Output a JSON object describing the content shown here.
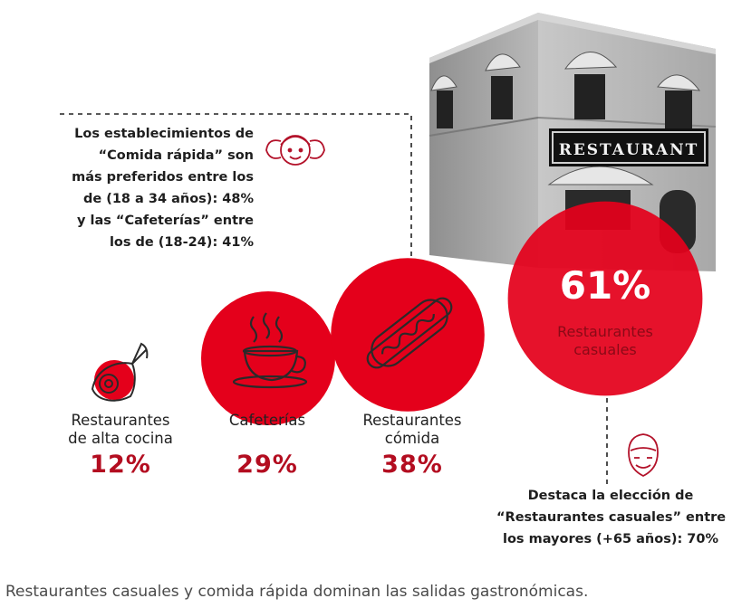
{
  "chart_data": {
    "type": "bubble",
    "title": "",
    "categories": [
      "Restaurantes de alta cocina",
      "Cafeterías",
      "Restaurantes comida",
      "Restaurantes casuales"
    ],
    "values": [
      12,
      29,
      38,
      61
    ],
    "unit": "%",
    "series": [
      {
        "name": "Restaurantes de alta cocina",
        "label_lines": [
          "Restaurantes",
          "de alta cocina"
        ],
        "value": 12,
        "value_text": "12%",
        "icon": "fish-icon"
      },
      {
        "name": "Cafeterías",
        "label_lines": [
          "Cafeterías"
        ],
        "value": 29,
        "value_text": "29%",
        "icon": "coffee-cup-icon"
      },
      {
        "name": "Restaurantes comida",
        "label_lines": [
          "Restaurantes",
          "cómida"
        ],
        "value": 38,
        "value_text": "38%",
        "icon": "hot-dog-icon"
      },
      {
        "name": "Restaurantes casuales",
        "label_lines": [
          "Restaurantes",
          "casuales"
        ],
        "value": 61,
        "value_text": "61%",
        "icon": "restaurant-building-image"
      }
    ],
    "building_sign": "RESTAURANT",
    "annotations": [
      {
        "id": "young",
        "icon": "girl-face-icon",
        "lines": [
          "Los establecimientos de",
          "“Comida rápida” son",
          "más preferidos entre los",
          "de (18 a 34 años): 48%",
          "y las “Cafeterías” entre",
          "los de (18-24): 41%"
        ]
      },
      {
        "id": "senior",
        "icon": "elderly-face-icon",
        "lines": [
          "Destaca la elección de",
          "“Restaurantes casuales” entre",
          "los mayores (+65 años): 70%"
        ]
      }
    ]
  },
  "caption": "Restaurantes casuales y comida rápida dominan las salidas gastronómicas.",
  "colors": {
    "accent_red": "#e4001b",
    "dark_red": "#b30d20",
    "icon_line": "#2a2a2a",
    "building_gray": "#a3a3a3"
  }
}
